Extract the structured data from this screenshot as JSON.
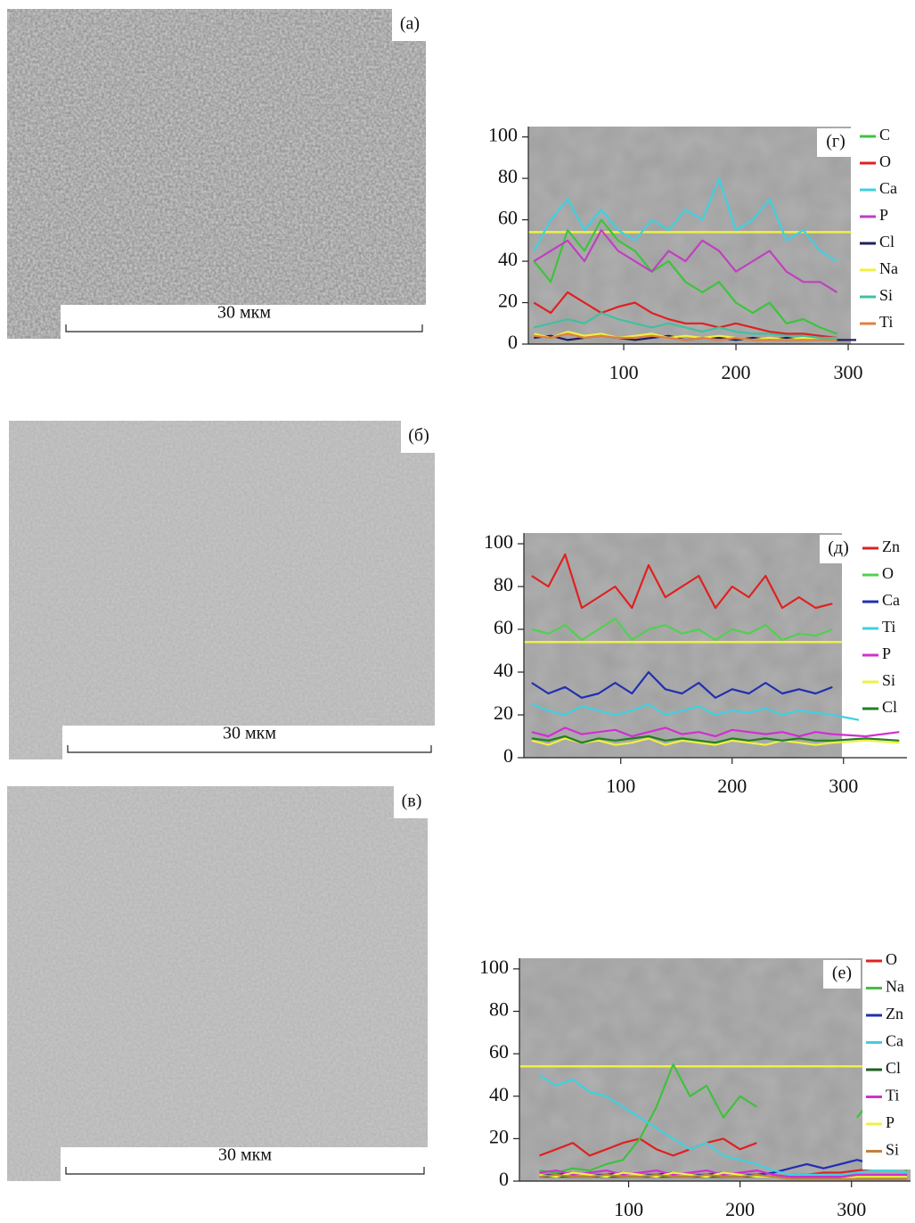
{
  "images": [
    {
      "label": "(а)",
      "scale_bar": "30 мкм"
    },
    {
      "label": "(б)",
      "scale_bar": "30 мкм"
    },
    {
      "label": "(в)",
      "scale_bar": "30 мкм"
    }
  ],
  "chart_data": [
    {
      "type": "line",
      "annotation": "(г)",
      "x": [
        20,
        35,
        50,
        65,
        80,
        95,
        110,
        125,
        140,
        155,
        170,
        185,
        200,
        215,
        230,
        245,
        260,
        275,
        290,
        320,
        350
      ],
      "xlim": [
        15,
        350
      ],
      "ylim": [
        0,
        105
      ],
      "xticks": [
        100,
        200,
        300
      ],
      "yticks": [
        0,
        20,
        40,
        60,
        80,
        100
      ],
      "series": [
        {
          "name": "C",
          "color": "#3cc43c",
          "values": [
            40,
            30,
            55,
            45,
            60,
            50,
            45,
            35,
            40,
            30,
            25,
            30,
            20,
            15,
            20,
            10,
            12,
            8,
            5,
            null,
            null
          ]
        },
        {
          "name": "O",
          "color": "#e02020",
          "values": [
            20,
            15,
            25,
            20,
            15,
            18,
            20,
            15,
            12,
            10,
            10,
            8,
            10,
            8,
            6,
            5,
            5,
            4,
            3,
            null,
            null
          ]
        },
        {
          "name": "Ca",
          "color": "#40d0e0",
          "values": [
            45,
            60,
            70,
            55,
            65,
            55,
            50,
            60,
            55,
            65,
            60,
            80,
            55,
            60,
            70,
            50,
            55,
            45,
            40,
            null,
            null
          ]
        },
        {
          "name": "P",
          "color": "#c040c0",
          "values": [
            40,
            45,
            50,
            40,
            55,
            45,
            40,
            35,
            45,
            40,
            50,
            45,
            35,
            40,
            45,
            35,
            30,
            30,
            25,
            null,
            null
          ]
        },
        {
          "name": "Cl",
          "color": "#202060",
          "values": [
            3,
            4,
            2,
            3,
            4,
            3,
            2,
            3,
            4,
            2,
            3,
            3,
            2,
            3,
            2,
            3,
            2,
            2,
            2,
            2,
            2
          ]
        },
        {
          "name": "Na",
          "color": "#f0f040",
          "values": [
            5,
            3,
            6,
            4,
            5,
            3,
            4,
            5,
            3,
            4,
            3,
            4,
            3,
            2,
            3,
            2,
            3,
            2,
            2,
            null,
            null
          ]
        },
        {
          "name": "Si",
          "color": "#40c0a0",
          "values": [
            8,
            10,
            12,
            10,
            15,
            12,
            10,
            8,
            10,
            8,
            6,
            8,
            6,
            5,
            5,
            4,
            4,
            3,
            3,
            null,
            null
          ]
        },
        {
          "name": "Ti",
          "color": "#e08040",
          "values": [
            4,
            3,
            5,
            3,
            4,
            3,
            3,
            4,
            3,
            2,
            3,
            2,
            3,
            2,
            2,
            2,
            2,
            2,
            2,
            null,
            null
          ]
        }
      ]
    },
    {
      "type": "line",
      "annotation": "(д)",
      "x": [
        20,
        35,
        50,
        65,
        80,
        95,
        110,
        125,
        140,
        155,
        170,
        185,
        200,
        215,
        230,
        245,
        260,
        275,
        290,
        320,
        350
      ],
      "xlim": [
        13,
        357
      ],
      "ylim": [
        0,
        105
      ],
      "xticks": [
        100,
        200,
        300
      ],
      "yticks": [
        0,
        20,
        40,
        60,
        80,
        100
      ],
      "series": [
        {
          "name": "Zn",
          "color": "#e02020",
          "values": [
            85,
            80,
            95,
            70,
            75,
            80,
            70,
            90,
            75,
            80,
            85,
            70,
            80,
            75,
            85,
            70,
            75,
            70,
            72,
            null,
            null
          ]
        },
        {
          "name": "O",
          "color": "#50d050",
          "values": [
            60,
            58,
            62,
            55,
            60,
            65,
            55,
            60,
            62,
            58,
            60,
            55,
            60,
            58,
            62,
            55,
            58,
            57,
            60,
            null,
            null
          ]
        },
        {
          "name": "Ca",
          "color": "#2030b0",
          "values": [
            35,
            30,
            33,
            28,
            30,
            35,
            30,
            40,
            32,
            30,
            35,
            28,
            32,
            30,
            35,
            30,
            32,
            30,
            33,
            null,
            null
          ]
        },
        {
          "name": "Ti",
          "color": "#40d0e0",
          "values": [
            25,
            22,
            20,
            24,
            22,
            20,
            22,
            25,
            20,
            22,
            24,
            20,
            22,
            21,
            23,
            20,
            22,
            21,
            20,
            17,
            17
          ]
        },
        {
          "name": "P",
          "color": "#d030d0",
          "values": [
            12,
            10,
            14,
            11,
            12,
            13,
            10,
            12,
            14,
            11,
            12,
            10,
            13,
            12,
            11,
            12,
            10,
            12,
            11,
            10,
            12
          ]
        },
        {
          "name": "Si",
          "color": "#f0f040",
          "values": [
            8,
            6,
            9,
            7,
            8,
            6,
            7,
            9,
            6,
            8,
            7,
            6,
            8,
            7,
            6,
            8,
            7,
            6,
            7,
            8,
            7
          ]
        },
        {
          "name": "Cl",
          "color": "#208020",
          "values": [
            9,
            8,
            10,
            7,
            9,
            8,
            9,
            10,
            8,
            9,
            8,
            7,
            9,
            8,
            9,
            8,
            9,
            8,
            8,
            9,
            8
          ]
        }
      ]
    },
    {
      "type": "line",
      "annotation": "(е)",
      "x": [
        20,
        35,
        50,
        65,
        80,
        95,
        110,
        125,
        140,
        155,
        170,
        185,
        200,
        215,
        230,
        245,
        260,
        275,
        290,
        305,
        320,
        335,
        350
      ],
      "xlim": [
        2,
        353
      ],
      "ylim": [
        0,
        105
      ],
      "xticks": [
        100,
        200,
        300
      ],
      "yticks": [
        0,
        20,
        40,
        60,
        80,
        100
      ],
      "series": [
        {
          "name": "O",
          "color": "#e02020",
          "values": [
            12,
            15,
            18,
            12,
            15,
            18,
            20,
            15,
            12,
            15,
            18,
            20,
            15,
            18,
            null,
            3,
            3,
            4,
            4,
            5,
            6,
            8,
            7
          ]
        },
        {
          "name": "Na",
          "color": "#40c040",
          "values": [
            5,
            4,
            6,
            5,
            8,
            10,
            20,
            35,
            55,
            40,
            45,
            30,
            40,
            35,
            null,
            null,
            null,
            null,
            null,
            30,
            40,
            10,
            5
          ]
        },
        {
          "name": "Zn",
          "color": "#2030b0",
          "values": [
            3,
            3,
            4,
            3,
            3,
            4,
            3,
            3,
            4,
            3,
            3,
            4,
            3,
            3,
            4,
            6,
            8,
            6,
            8,
            10,
            8,
            10,
            9
          ]
        },
        {
          "name": "Ca",
          "color": "#40d0e0",
          "values": [
            50,
            45,
            48,
            42,
            40,
            35,
            30,
            25,
            20,
            15,
            18,
            12,
            10,
            8,
            5,
            3,
            3,
            3,
            3,
            4,
            5,
            5,
            4
          ]
        },
        {
          "name": "Cl",
          "color": "#206020",
          "values": [
            2,
            2,
            2,
            2,
            2,
            2,
            2,
            2,
            2,
            2,
            2,
            2,
            2,
            2,
            2,
            2,
            2,
            2,
            2,
            2,
            2,
            2,
            2
          ]
        },
        {
          "name": "Ti",
          "color": "#d030d0",
          "values": [
            4,
            5,
            3,
            4,
            5,
            3,
            4,
            5,
            3,
            4,
            5,
            3,
            4,
            5,
            3,
            2,
            2,
            2,
            2,
            3,
            3,
            3,
            3
          ]
        },
        {
          "name": "P",
          "color": "#f0f040",
          "values": [
            3,
            2,
            4,
            3,
            2,
            4,
            3,
            2,
            4,
            3,
            2,
            4,
            3,
            2,
            2,
            1,
            1,
            1,
            1,
            2,
            2,
            2,
            2
          ]
        },
        {
          "name": "Si",
          "color": "#c08040",
          "values": [
            2,
            3,
            2,
            2,
            3,
            2,
            2,
            3,
            2,
            2,
            3,
            2,
            2,
            3,
            2,
            1,
            1,
            1,
            1,
            1,
            1,
            1,
            1
          ]
        }
      ]
    }
  ]
}
